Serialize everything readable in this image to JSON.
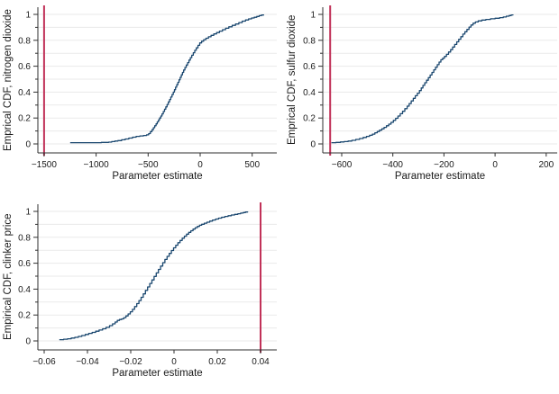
{
  "page": {
    "background": "#ffffff"
  },
  "styles": {
    "curve_color": "#1a476f",
    "ref_line_color": "#c13158",
    "grid_color": "#eaeaea",
    "axis_color": "#2f2f2f",
    "text_color": "#1a1a1a"
  },
  "chart_data": [
    {
      "type": "line",
      "subtype": "empirical-cdf-step",
      "ylabel": "Emprical CDF, nitrogen dioxide",
      "xlabel": "Parameter estimate",
      "xlim": [
        -1560,
        737
      ],
      "ylim": [
        0,
        1
      ],
      "xticks": [
        -1500,
        -1000,
        -500,
        0,
        500
      ],
      "xtick_labels": [
        "−1500",
        "−1000",
        "−500",
        "0",
        "500"
      ],
      "yticks": [
        0,
        0.2,
        0.4,
        0.6,
        0.8,
        1
      ],
      "ytick_labels": [
        "0",
        "0.2",
        "0.4",
        "0.6",
        "0.8",
        "1"
      ],
      "minor_yticks": [
        0.1,
        0.3,
        0.5,
        0.7,
        0.9
      ],
      "grid": "horizontal every 0.1",
      "legend": "none",
      "ref_line_x": -1500,
      "points": [
        [
          -1250,
          0.01
        ],
        [
          -1180,
          0.01
        ],
        [
          -1100,
          0.01
        ],
        [
          -1020,
          0.01
        ],
        [
          -950,
          0.012
        ],
        [
          -880,
          0.014
        ],
        [
          -850,
          0.018
        ],
        [
          -820,
          0.022
        ],
        [
          -790,
          0.026
        ],
        [
          -755,
          0.032
        ],
        [
          -720,
          0.038
        ],
        [
          -685,
          0.045
        ],
        [
          -650,
          0.052
        ],
        [
          -615,
          0.058
        ],
        [
          -580,
          0.062
        ],
        [
          -545,
          0.065
        ],
        [
          -515,
          0.07
        ],
        [
          -495,
          0.08
        ],
        [
          -478,
          0.095
        ],
        [
          -463,
          0.11
        ],
        [
          -450,
          0.125
        ],
        [
          -437,
          0.14
        ],
        [
          -424,
          0.155
        ],
        [
          -412,
          0.17
        ],
        [
          -400,
          0.185
        ],
        [
          -390,
          0.2
        ],
        [
          -378,
          0.215
        ],
        [
          -366,
          0.232
        ],
        [
          -354,
          0.25
        ],
        [
          -342,
          0.268
        ],
        [
          -330,
          0.286
        ],
        [
          -318,
          0.305
        ],
        [
          -306,
          0.324
        ],
        [
          -294,
          0.343
        ],
        [
          -282,
          0.362
        ],
        [
          -270,
          0.381
        ],
        [
          -258,
          0.4
        ],
        [
          -247,
          0.419
        ],
        [
          -236,
          0.438
        ],
        [
          -225,
          0.457
        ],
        [
          -214,
          0.476
        ],
        [
          -203,
          0.495
        ],
        [
          -192,
          0.514
        ],
        [
          -181,
          0.533
        ],
        [
          -170,
          0.552
        ],
        [
          -158,
          0.571
        ],
        [
          -146,
          0.59
        ],
        [
          -133,
          0.609
        ],
        [
          -120,
          0.628
        ],
        [
          -107,
          0.647
        ],
        [
          -94,
          0.666
        ],
        [
          -80,
          0.685
        ],
        [
          -66,
          0.704
        ],
        [
          -52,
          0.723
        ],
        [
          -37,
          0.742
        ],
        [
          -21,
          0.761
        ],
        [
          -4,
          0.78
        ],
        [
          14,
          0.793
        ],
        [
          34,
          0.805
        ],
        [
          56,
          0.816
        ],
        [
          80,
          0.827
        ],
        [
          105,
          0.838
        ],
        [
          131,
          0.849
        ],
        [
          158,
          0.86
        ],
        [
          186,
          0.871
        ],
        [
          215,
          0.882
        ],
        [
          245,
          0.893
        ],
        [
          276,
          0.904
        ],
        [
          308,
          0.915
        ],
        [
          340,
          0.926
        ],
        [
          372,
          0.937
        ],
        [
          404,
          0.948
        ],
        [
          436,
          0.957
        ],
        [
          466,
          0.965
        ],
        [
          494,
          0.972
        ],
        [
          520,
          0.978
        ],
        [
          545,
          0.984
        ],
        [
          568,
          0.99
        ],
        [
          590,
          0.995
        ],
        [
          610,
          1.0
        ]
      ]
    },
    {
      "type": "line",
      "subtype": "empirical-cdf-step",
      "ylabel": "Emprical CDF, sulfur dioxide",
      "xlabel": "Parameter estimate",
      "xlim": [
        -674,
        243
      ],
      "ylim": [
        0,
        1
      ],
      "xticks": [
        -600,
        -400,
        -200,
        0,
        200
      ],
      "xtick_labels": [
        "−600",
        "−400",
        "−200",
        "0",
        "200"
      ],
      "yticks": [
        0,
        0.2,
        0.4,
        0.6,
        0.8,
        1
      ],
      "ytick_labels": [
        "0",
        "0.2",
        "0.4",
        "0.6",
        "0.8",
        "1"
      ],
      "minor_yticks": [
        0.1,
        0.3,
        0.5,
        0.7,
        0.9
      ],
      "grid": "horizontal every 0.1",
      "legend": "none",
      "ref_line_x": -645,
      "points": [
        [
          -640,
          0.01
        ],
        [
          -622,
          0.012
        ],
        [
          -605,
          0.015
        ],
        [
          -590,
          0.018
        ],
        [
          -575,
          0.022
        ],
        [
          -560,
          0.028
        ],
        [
          -545,
          0.035
        ],
        [
          -530,
          0.042
        ],
        [
          -516,
          0.05
        ],
        [
          -503,
          0.058
        ],
        [
          -491,
          0.067
        ],
        [
          -480,
          0.076
        ],
        [
          -470,
          0.086
        ],
        [
          -461,
          0.096
        ],
        [
          -452,
          0.106
        ],
        [
          -443,
          0.117
        ],
        [
          -434,
          0.128
        ],
        [
          -425,
          0.14
        ],
        [
          -416,
          0.153
        ],
        [
          -407,
          0.167
        ],
        [
          -398,
          0.182
        ],
        [
          -389,
          0.198
        ],
        [
          -380,
          0.215
        ],
        [
          -371,
          0.233
        ],
        [
          -362,
          0.252
        ],
        [
          -353,
          0.272
        ],
        [
          -344,
          0.292
        ],
        [
          -336,
          0.312
        ],
        [
          -328,
          0.332
        ],
        [
          -320,
          0.352
        ],
        [
          -312,
          0.372
        ],
        [
          -304,
          0.392
        ],
        [
          -296,
          0.412
        ],
        [
          -289,
          0.432
        ],
        [
          -282,
          0.452
        ],
        [
          -275,
          0.472
        ],
        [
          -268,
          0.492
        ],
        [
          -261,
          0.512
        ],
        [
          -254,
          0.532
        ],
        [
          -247,
          0.552
        ],
        [
          -240,
          0.572
        ],
        [
          -233,
          0.592
        ],
        [
          -226,
          0.612
        ],
        [
          -219,
          0.632
        ],
        [
          -212,
          0.65
        ],
        [
          -205,
          0.662
        ],
        [
          -198,
          0.676
        ],
        [
          -190,
          0.692
        ],
        [
          -182,
          0.71
        ],
        [
          -174,
          0.728
        ],
        [
          -166,
          0.748
        ],
        [
          -158,
          0.768
        ],
        [
          -150,
          0.788
        ],
        [
          -142,
          0.808
        ],
        [
          -134,
          0.828
        ],
        [
          -126,
          0.848
        ],
        [
          -118,
          0.866
        ],
        [
          -110,
          0.884
        ],
        [
          -102,
          0.902
        ],
        [
          -94,
          0.918
        ],
        [
          -86,
          0.932
        ],
        [
          -77,
          0.942
        ],
        [
          -66,
          0.95
        ],
        [
          -52,
          0.956
        ],
        [
          -36,
          0.961
        ],
        [
          -18,
          0.966
        ],
        [
          0,
          0.97
        ],
        [
          18,
          0.975
        ],
        [
          32,
          0.98
        ],
        [
          44,
          0.986
        ],
        [
          55,
          0.991
        ],
        [
          63,
          0.996
        ],
        [
          70,
          1.0
        ]
      ]
    },
    {
      "type": "line",
      "subtype": "empirical-cdf-step",
      "ylabel": "Empirical CDF, clinker price",
      "xlabel": "Parameter estimate",
      "xlim": [
        -0.0629,
        0.0475
      ],
      "ylim": [
        0,
        1
      ],
      "xticks": [
        -0.06,
        -0.04,
        -0.02,
        0,
        0.02,
        0.04
      ],
      "xtick_labels": [
        "−0.06",
        "−0.04",
        "−0.02",
        "0",
        "0.02",
        "0.04"
      ],
      "yticks": [
        0,
        0.2,
        0.4,
        0.6,
        0.8,
        1
      ],
      "ytick_labels": [
        "0",
        "0.2",
        "0.4",
        "0.6",
        "0.8",
        "1"
      ],
      "minor_yticks": [
        0.1,
        0.3,
        0.5,
        0.7,
        0.9
      ],
      "grid": "horizontal every 0.1",
      "legend": "none",
      "ref_line_x": 0.04,
      "points": [
        [
          -0.053,
          0.01
        ],
        [
          -0.051,
          0.013
        ],
        [
          -0.0492,
          0.017
        ],
        [
          -0.0475,
          0.022
        ],
        [
          -0.0458,
          0.028
        ],
        [
          -0.0442,
          0.035
        ],
        [
          -0.0426,
          0.042
        ],
        [
          -0.041,
          0.05
        ],
        [
          -0.0394,
          0.058
        ],
        [
          -0.0378,
          0.066
        ],
        [
          -0.0362,
          0.075
        ],
        [
          -0.0346,
          0.084
        ],
        [
          -0.033,
          0.094
        ],
        [
          -0.0314,
          0.105
        ],
        [
          -0.0298,
          0.118
        ],
        [
          -0.0284,
          0.132
        ],
        [
          -0.0272,
          0.146
        ],
        [
          -0.0262,
          0.158
        ],
        [
          -0.0252,
          0.165
        ],
        [
          -0.0242,
          0.17
        ],
        [
          -0.0232,
          0.18
        ],
        [
          -0.0222,
          0.193
        ],
        [
          -0.0212,
          0.208
        ],
        [
          -0.0202,
          0.225
        ],
        [
          -0.0192,
          0.244
        ],
        [
          -0.0182,
          0.265
        ],
        [
          -0.0172,
          0.288
        ],
        [
          -0.0162,
          0.312
        ],
        [
          -0.0152,
          0.337
        ],
        [
          -0.0142,
          0.363
        ],
        [
          -0.0132,
          0.39
        ],
        [
          -0.0122,
          0.417
        ],
        [
          -0.0112,
          0.444
        ],
        [
          -0.0102,
          0.471
        ],
        [
          -0.0092,
          0.498
        ],
        [
          -0.0082,
          0.525
        ],
        [
          -0.0072,
          0.552
        ],
        [
          -0.0062,
          0.578
        ],
        [
          -0.0052,
          0.604
        ],
        [
          -0.0042,
          0.629
        ],
        [
          -0.0032,
          0.653
        ],
        [
          -0.0022,
          0.676
        ],
        [
          -0.0012,
          0.698
        ],
        [
          -0.0002,
          0.719
        ],
        [
          0.0008,
          0.739
        ],
        [
          0.0018,
          0.758
        ],
        [
          0.0028,
          0.776
        ],
        [
          0.0038,
          0.793
        ],
        [
          0.0048,
          0.809
        ],
        [
          0.0058,
          0.824
        ],
        [
          0.0068,
          0.838
        ],
        [
          0.0078,
          0.851
        ],
        [
          0.0088,
          0.863
        ],
        [
          0.0098,
          0.874
        ],
        [
          0.0108,
          0.884
        ],
        [
          0.0118,
          0.893
        ],
        [
          0.0128,
          0.901
        ],
        [
          0.014,
          0.909
        ],
        [
          0.0152,
          0.917
        ],
        [
          0.0165,
          0.925
        ],
        [
          0.0178,
          0.933
        ],
        [
          0.0192,
          0.941
        ],
        [
          0.0206,
          0.948
        ],
        [
          0.022,
          0.955
        ],
        [
          0.0235,
          0.961
        ],
        [
          0.025,
          0.967
        ],
        [
          0.0265,
          0.972
        ],
        [
          0.028,
          0.977
        ],
        [
          0.0295,
          0.982
        ],
        [
          0.0308,
          0.987
        ],
        [
          0.032,
          0.991
        ],
        [
          0.033,
          0.995
        ],
        [
          0.034,
          1.0
        ]
      ]
    }
  ]
}
